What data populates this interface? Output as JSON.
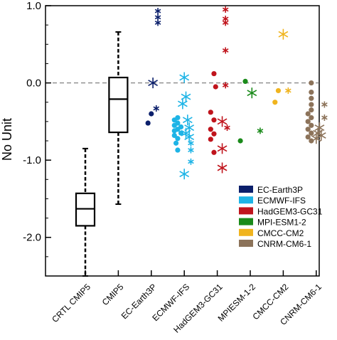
{
  "chart_data": {
    "type": "scatter",
    "title": "",
    "ylabel": "No Unit",
    "xlabel": "",
    "ylim": [
      -2.5,
      1.0
    ],
    "yticks": [
      {
        "value": 1.0,
        "label": "1.0"
      },
      {
        "value": 0.0,
        "label": "0.0"
      },
      {
        "value": -1.0,
        "label": "-1.0"
      },
      {
        "value": -2.0,
        "label": "-2.0"
      }
    ],
    "categories": [
      "CRTL CMIP5",
      "CMIP5",
      "EC-Earth3P",
      "ECMWF-IFS",
      "HadGEM3-GC31",
      "MPIESM-1-2",
      "CMCC-CM2",
      "CNRM-CM6-1"
    ],
    "reference_line": 0.0,
    "boxplots": [
      {
        "category": "CRTL CMIP5",
        "min": -2.5,
        "q1": -1.85,
        "median": -1.63,
        "q3": -1.43,
        "max": -0.85
      },
      {
        "category": "CMIP5",
        "min": -1.57,
        "q1": -0.64,
        "median": -0.21,
        "q3": 0.07,
        "max": 0.66
      }
    ],
    "legend": {
      "position": "lower-right",
      "entries": [
        {
          "name": "EC-Earth3P",
          "color": "#0b1f6b"
        },
        {
          "name": "ECMWF-IFS",
          "color": "#1eb4e6"
        },
        {
          "name": "HadGEM3-GC31",
          "color": "#c0141c"
        },
        {
          "name": "MPI-ESM1-2",
          "color": "#1a8a1a"
        },
        {
          "name": "CMCC-CM2",
          "color": "#f0b41e"
        },
        {
          "name": "CNRM-CM6-1",
          "color": "#8c735a"
        }
      ]
    },
    "groups": [
      {
        "category": "EC-Earth3P",
        "color": "#0b1f6b",
        "dots": [
          {
            "dx": -0.1,
            "y": -0.52
          },
          {
            "dx": 0.0,
            "y": -0.4
          }
        ],
        "stars": [
          {
            "dx": 0.2,
            "y": 0.93,
            "size": "s"
          },
          {
            "dx": 0.2,
            "y": 0.85,
            "size": "s"
          },
          {
            "dx": 0.2,
            "y": 0.78,
            "size": "s"
          },
          {
            "dx": 0.05,
            "y": 0.0,
            "size": "l"
          },
          {
            "dx": 0.15,
            "y": -0.33,
            "size": "s"
          }
        ]
      },
      {
        "category": "ECMWF-IFS",
        "color": "#1eb4e6",
        "dots": [
          {
            "dx": -0.3,
            "y": -0.48
          },
          {
            "dx": -0.3,
            "y": -0.55
          },
          {
            "dx": -0.3,
            "y": -0.62
          },
          {
            "dx": -0.3,
            "y": -0.68
          },
          {
            "dx": -0.2,
            "y": -0.45
          },
          {
            "dx": -0.2,
            "y": -0.52
          },
          {
            "dx": -0.2,
            "y": -0.6
          },
          {
            "dx": -0.2,
            "y": -0.72
          },
          {
            "dx": -0.2,
            "y": -0.87
          },
          {
            "dx": -0.1,
            "y": -0.57
          },
          {
            "dx": -0.1,
            "y": -0.65
          },
          {
            "dx": -0.25,
            "y": -0.78
          }
        ],
        "stars": [
          {
            "dx": 0.0,
            "y": 0.07,
            "size": "l"
          },
          {
            "dx": 0.05,
            "y": -0.18,
            "size": "l"
          },
          {
            "dx": -0.05,
            "y": -0.27,
            "size": "l"
          },
          {
            "dx": 0.1,
            "y": -0.48,
            "size": "l"
          },
          {
            "dx": 0.15,
            "y": -0.58,
            "size": "l"
          },
          {
            "dx": 0.05,
            "y": -0.65,
            "size": "l"
          },
          {
            "dx": 0.15,
            "y": -0.7,
            "size": "l"
          },
          {
            "dx": 0.2,
            "y": -0.87,
            "size": "s"
          },
          {
            "dx": 0.2,
            "y": -1.02,
            "size": "s"
          },
          {
            "dx": 0.0,
            "y": -1.18,
            "size": "l"
          },
          {
            "dx": 0.2,
            "y": -0.78,
            "size": "s"
          }
        ]
      },
      {
        "category": "HadGEM3-GC31",
        "color": "#c0141c",
        "dots": [
          {
            "dx": -0.1,
            "y": 0.12
          },
          {
            "dx": -0.05,
            "y": -0.05
          },
          {
            "dx": -0.2,
            "y": -0.38
          },
          {
            "dx": -0.1,
            "y": -0.48
          },
          {
            "dx": -0.2,
            "y": -0.6
          },
          {
            "dx": -0.1,
            "y": -0.66
          },
          {
            "dx": -0.2,
            "y": -0.73
          },
          {
            "dx": -0.1,
            "y": -0.9
          }
        ],
        "stars": [
          {
            "dx": 0.25,
            "y": 0.95,
            "size": "s"
          },
          {
            "dx": 0.25,
            "y": 0.83,
            "size": "s"
          },
          {
            "dx": 0.25,
            "y": 0.78,
            "size": "s"
          },
          {
            "dx": 0.25,
            "y": 0.42,
            "size": "s"
          },
          {
            "dx": 0.25,
            "y": -0.03,
            "size": "s"
          },
          {
            "dx": 0.15,
            "y": -0.5,
            "size": "l"
          },
          {
            "dx": 0.3,
            "y": -0.58,
            "size": "s"
          },
          {
            "dx": 0.15,
            "y": -0.85,
            "size": "l"
          },
          {
            "dx": 0.15,
            "y": -1.1,
            "size": "l"
          }
        ]
      },
      {
        "category": "MPIESM-1-2",
        "color": "#1a8a1a",
        "dots": [
          {
            "dx": -0.15,
            "y": 0.02
          },
          {
            "dx": -0.3,
            "y": -0.75
          }
        ],
        "stars": [
          {
            "dx": 0.05,
            "y": -0.13,
            "size": "l"
          },
          {
            "dx": 0.3,
            "y": -0.62,
            "size": "s"
          }
        ]
      },
      {
        "category": "CMCC-CM2",
        "color": "#f0b41e",
        "dots": [
          {
            "dx": -0.15,
            "y": -0.1
          },
          {
            "dx": -0.25,
            "y": -0.25
          }
        ],
        "stars": [
          {
            "dx": 0.0,
            "y": 0.63,
            "size": "l"
          },
          {
            "dx": 0.15,
            "y": -0.1,
            "size": "s"
          }
        ]
      },
      {
        "category": "CNRM-CM6-1",
        "color": "#8c735a",
        "dots": [
          {
            "dx": -0.15,
            "y": 0.0
          },
          {
            "dx": -0.15,
            "y": -0.12
          },
          {
            "dx": -0.15,
            "y": -0.2
          },
          {
            "dx": -0.15,
            "y": -0.28
          },
          {
            "dx": -0.15,
            "y": -0.35
          },
          {
            "dx": -0.25,
            "y": -0.4
          },
          {
            "dx": -0.15,
            "y": -0.45
          },
          {
            "dx": -0.25,
            "y": -0.5
          },
          {
            "dx": -0.15,
            "y": -0.55
          },
          {
            "dx": -0.25,
            "y": -0.6
          },
          {
            "dx": -0.15,
            "y": -0.65
          },
          {
            "dx": -0.25,
            "y": -0.7
          },
          {
            "dx": -0.15,
            "y": -0.75
          }
        ],
        "stars": [
          {
            "dx": 0.25,
            "y": -0.28,
            "size": "s"
          },
          {
            "dx": 0.25,
            "y": -0.45,
            "size": "s"
          },
          {
            "dx": 0.1,
            "y": -0.58,
            "size": "l"
          },
          {
            "dx": 0.05,
            "y": -0.65,
            "size": "l"
          },
          {
            "dx": 0.15,
            "y": -0.68,
            "size": "l"
          },
          {
            "dx": 0.0,
            "y": -0.72,
            "size": "l"
          }
        ]
      }
    ]
  }
}
